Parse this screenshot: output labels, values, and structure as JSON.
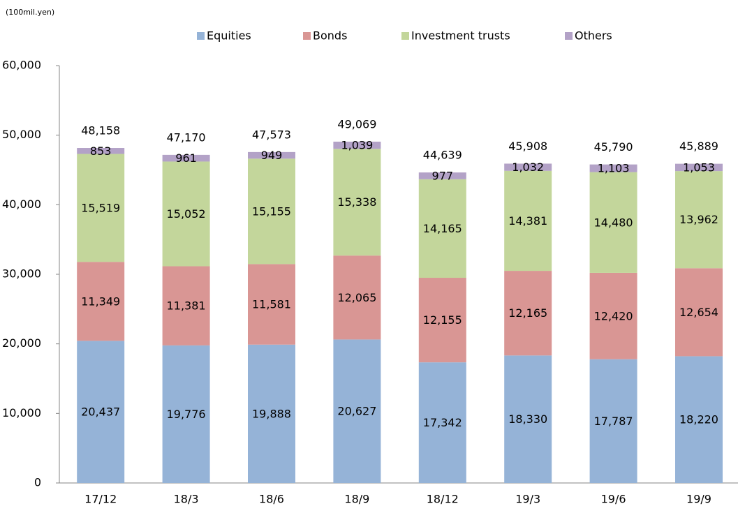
{
  "chart_data": {
    "type": "stacked-bar",
    "unit_label": "(100mil.yen)",
    "categories": [
      "17/12",
      "18/3",
      "18/6",
      "18/9",
      "18/12",
      "19/3",
      "19/6",
      "19/9"
    ],
    "series": [
      {
        "name": "Equities",
        "color": "#95b3d7",
        "values": [
          20437,
          19776,
          19888,
          20627,
          17342,
          18330,
          17787,
          18220
        ],
        "value_labels": [
          "20,437",
          "19,776",
          "19,888",
          "20,627",
          "17,342",
          "18,330",
          "17,787",
          "18,220"
        ]
      },
      {
        "name": "Bonds",
        "color": "#d99694",
        "values": [
          11349,
          11381,
          11581,
          12065,
          12155,
          12165,
          12420,
          12654
        ],
        "value_labels": [
          "11,349",
          "11,381",
          "11,581",
          "12,065",
          "12,155",
          "12,165",
          "12,420",
          "12,654"
        ]
      },
      {
        "name": "Investment trusts",
        "color": "#c3d69b",
        "values": [
          15519,
          15052,
          15155,
          15338,
          14165,
          14381,
          14480,
          13962
        ],
        "value_labels": [
          "15,519",
          "15,052",
          "15,155",
          "15,338",
          "14,165",
          "14,381",
          "14,480",
          "13,962"
        ]
      },
      {
        "name": "Others",
        "color": "#b3a2c7",
        "values": [
          853,
          961,
          949,
          1039,
          977,
          1032,
          1103,
          1053
        ],
        "value_labels": [
          "853",
          "961",
          "949",
          "1,039",
          "977",
          "1,032",
          "1,103",
          "1,053"
        ]
      }
    ],
    "totals": {
      "values": [
        48158,
        47170,
        47573,
        49069,
        44639,
        45908,
        45790,
        45889
      ],
      "value_labels": [
        "48,158",
        "47,170",
        "47,573",
        "49,069",
        "44,639",
        "45,908",
        "45,790",
        "45,889"
      ]
    },
    "ylim": [
      0,
      60000
    ],
    "yticks": [
      0,
      {
        "value": 10000,
        "label": "10,000"
      },
      {
        "value": 20000,
        "label": "20,000"
      },
      {
        "value": 30000,
        "label": "30,000"
      },
      {
        "value": 40000,
        "label": "40,000"
      },
      {
        "value": 50000,
        "label": "50,000"
      },
      {
        "value": 60000,
        "label": "60,000"
      }
    ],
    "grid": false,
    "legend": "top"
  }
}
